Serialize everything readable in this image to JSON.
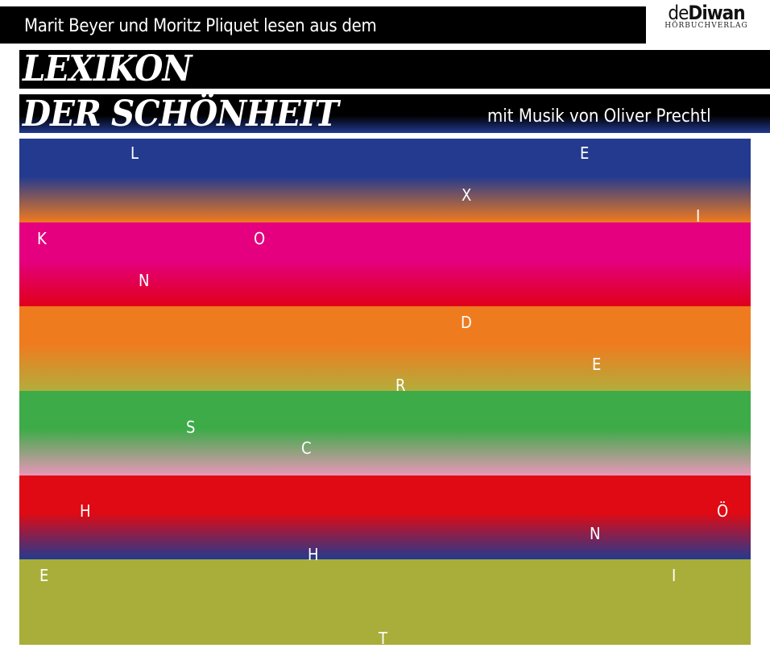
{
  "header": {
    "subtitle": "Marit Beyer und Moritz Pliquet lesen aus dem",
    "title_line1": "LEXIKON",
    "title_line2": "DER SCHÖNHEIT",
    "music_credit": "mit Musik von Oliver Prechtl"
  },
  "logo": {
    "brand_de": "de",
    "brand_diwan": "Diwan",
    "sub": "HÖRBUCHVERLAG"
  },
  "bands": [
    {
      "from": "#233a8f",
      "to": "#f07a1e"
    },
    {
      "from": "#e4007f",
      "to": "#e0001a"
    },
    {
      "from": "#ef7b1f",
      "to": "#b3ad3c"
    },
    {
      "from": "#3dab48",
      "to": "#e897b8"
    },
    {
      "from": "#df0a14",
      "to": "#233a8f"
    },
    {
      "from": "#a8ae39",
      "to": "#a8ae39"
    }
  ],
  "letters": [
    "L",
    "E",
    "X",
    "I",
    "K",
    "O",
    "N",
    "D",
    "E",
    "R",
    "S",
    "C",
    "H",
    "Ö",
    "N",
    "H",
    "E",
    "I",
    "T"
  ]
}
